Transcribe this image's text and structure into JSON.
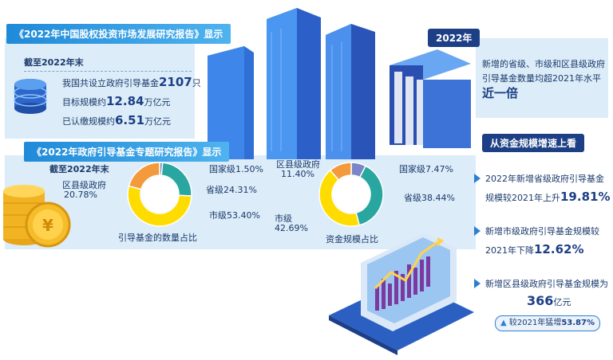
{
  "report1": {
    "title": "《2022年中国股权投资市场发展研究报告》显示",
    "as_of": "截至2022年末",
    "line1_pre": "我国共设立政府引导基金",
    "line1_num": "2107",
    "line1_unit": "只",
    "line2_pre": "目标规模约",
    "line2_num": "12.84",
    "line2_unit": "万亿元",
    "line3_pre": "已认缴规模约",
    "line3_num": "6.51",
    "line3_unit": "万亿元"
  },
  "year_tag": "2022年",
  "new_increase": {
    "line1": "新增的省级、市级和区县级政府",
    "line2": "引导基金数量均超2021年水平",
    "line3": "近一倍"
  },
  "report2": {
    "title": "《2022年政府引导基金专题研究报告》显示",
    "as_of": "截至2022年末"
  },
  "growth": {
    "title": "从资金规模增速上看",
    "item1_a": "2022年新增省级政府引导基金",
    "item1_b": "规模较2021年上升",
    "item1_num": "19.81%",
    "item2_a": "新增市级政府引导基金规模较",
    "item2_b": "2021年下降",
    "item2_num": "12.62%",
    "item3_a": "新增区县级政府引导基金规模为",
    "item3_num": "366",
    "item3_unit": "亿元",
    "item3_badge_pre": "较2021年猛增",
    "item3_badge_num": "53.87%"
  },
  "colors": {
    "national": "#7a86c8",
    "provincial": "#2aa6a0",
    "city": "#ffdc00",
    "district": "#f39a3c"
  },
  "chart_data": [
    {
      "type": "pie",
      "title": "引导基金的数量占比",
      "slices": [
        {
          "label": "国家级",
          "value": 1.5,
          "text": "国家级1.50%"
        },
        {
          "label": "省级",
          "value": 24.31,
          "text": "省级24.31%"
        },
        {
          "label": "市级",
          "value": 53.4,
          "text": "市级53.40%"
        },
        {
          "label": "区县级政府",
          "value": 20.78,
          "text": "20.78%"
        }
      ]
    },
    {
      "type": "pie",
      "title": "资金规模占比",
      "slices": [
        {
          "label": "国家级",
          "value": 7.47,
          "text": "国家级7.47%"
        },
        {
          "label": "省级",
          "value": 38.44,
          "text": "省级38.44%"
        },
        {
          "label": "市级",
          "value": 42.69,
          "text": "42.69%"
        },
        {
          "label": "区县级政府",
          "value": 11.4,
          "text": "11.40%"
        }
      ]
    }
  ]
}
